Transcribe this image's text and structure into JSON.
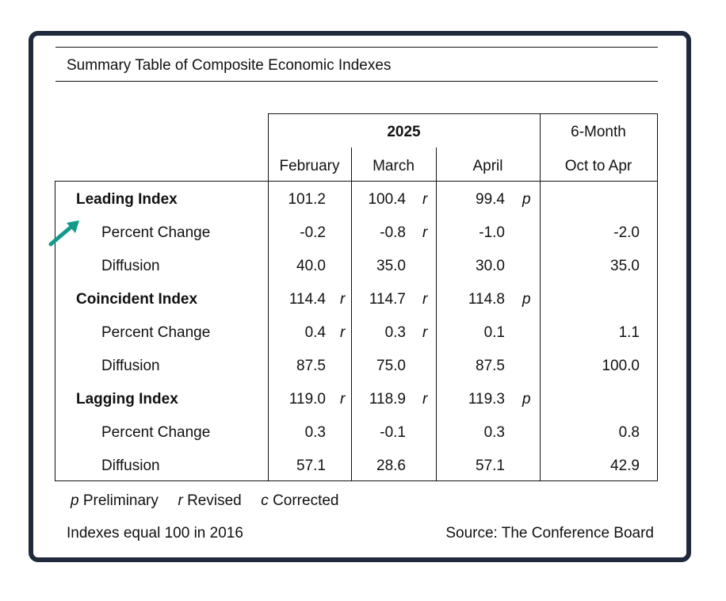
{
  "title": "Summary Table of Composite Economic Indexes",
  "header": {
    "year": "2025",
    "months": [
      "February",
      "March",
      "April"
    ],
    "six_month": "6-Month",
    "range": "Oct to Apr"
  },
  "rows": [
    {
      "label": "Leading Index",
      "bold": true,
      "feb": "101.2",
      "feb_flag": "",
      "mar": "100.4",
      "mar_flag": "r",
      "apr": "99.4",
      "apr_flag": "p",
      "six": ""
    },
    {
      "label": "Percent Change",
      "bold": false,
      "feb": "-0.2",
      "feb_flag": "",
      "mar": "-0.8",
      "mar_flag": "r",
      "apr": "-1.0",
      "apr_flag": "",
      "six": "-2.0"
    },
    {
      "label": "Diffusion",
      "bold": false,
      "feb": "40.0",
      "feb_flag": "",
      "mar": "35.0",
      "mar_flag": "",
      "apr": "30.0",
      "apr_flag": "",
      "six": "35.0"
    },
    {
      "label": "Coincident Index",
      "bold": true,
      "feb": "114.4",
      "feb_flag": "r",
      "mar": "114.7",
      "mar_flag": "r",
      "apr": "114.8",
      "apr_flag": "p",
      "six": ""
    },
    {
      "label": "Percent Change",
      "bold": false,
      "feb": "0.4",
      "feb_flag": "r",
      "mar": "0.3",
      "mar_flag": "r",
      "apr": "0.1",
      "apr_flag": "",
      "six": "1.1"
    },
    {
      "label": "Diffusion",
      "bold": false,
      "feb": "87.5",
      "feb_flag": "",
      "mar": "75.0",
      "mar_flag": "",
      "apr": "87.5",
      "apr_flag": "",
      "six": "100.0"
    },
    {
      "label": "Lagging Index",
      "bold": true,
      "feb": "119.0",
      "feb_flag": "r",
      "mar": "118.9",
      "mar_flag": "r",
      "apr": "119.3",
      "apr_flag": "p",
      "six": ""
    },
    {
      "label": "Percent Change",
      "bold": false,
      "feb": "0.3",
      "feb_flag": "",
      "mar": "-0.1",
      "mar_flag": "",
      "apr": "0.3",
      "apr_flag": "",
      "six": "0.8"
    },
    {
      "label": "Diffusion",
      "bold": false,
      "feb": "57.1",
      "feb_flag": "",
      "mar": "28.6",
      "mar_flag": "",
      "apr": "57.1",
      "apr_flag": "",
      "six": "42.9"
    }
  ],
  "legend": {
    "p_mark": "p",
    "p_text": "Preliminary",
    "r_mark": "r",
    "r_text": "Revised",
    "c_mark": "c",
    "c_text": "Corrected"
  },
  "footer": {
    "base_note": "Indexes equal 100 in 2016",
    "source": "Source: The Conference Board"
  },
  "colors": {
    "frame": "#1f2a3c",
    "arrow": "#119a8a"
  },
  "arrow_icon": "arrow-up-right-icon"
}
